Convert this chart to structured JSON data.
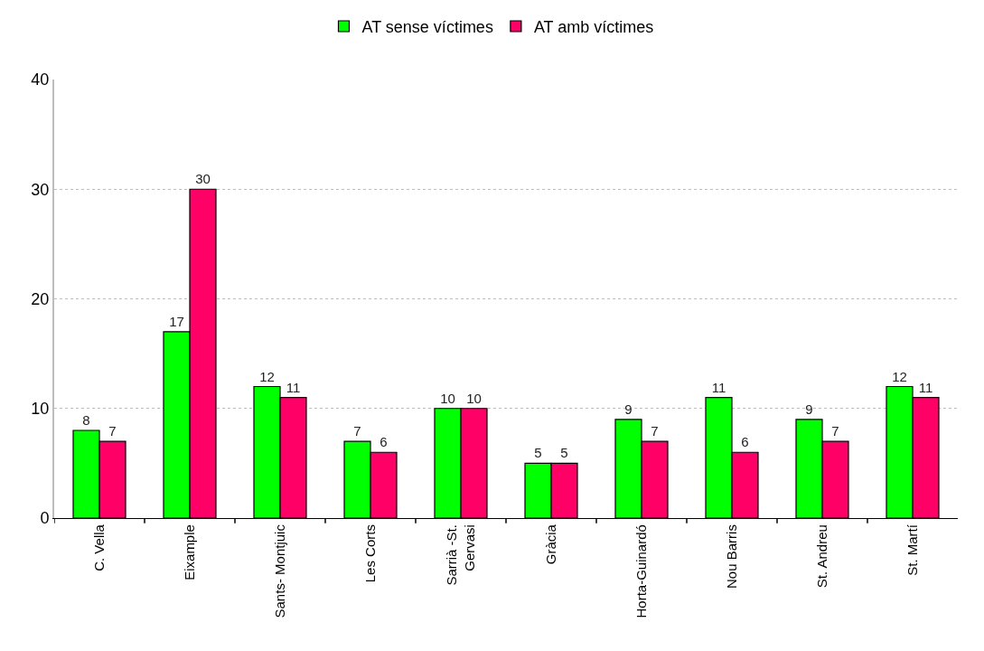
{
  "chart_data": {
    "type": "bar",
    "categories": [
      "C. Vella",
      "Eixample",
      "Sants- Montjuic",
      "Les Corts",
      "Sarrià -St.\nGervasi",
      "Gràcia",
      "Horta-Guinardó",
      "Nou Barris",
      "St. Andreu",
      "St. Martí"
    ],
    "series": [
      {
        "name": "AT sense víctimes",
        "color": "#00ff00",
        "values": [
          8,
          17,
          12,
          7,
          10,
          5,
          9,
          11,
          9,
          12
        ]
      },
      {
        "name": "AT amb víctimes",
        "color": "#ff0066",
        "values": [
          7,
          30,
          11,
          6,
          10,
          5,
          7,
          6,
          7,
          11
        ]
      }
    ],
    "ylim": [
      0,
      40
    ],
    "yticks": [
      0,
      10,
      20,
      30,
      40
    ],
    "grid": "y",
    "legend": "top",
    "data_labels": true
  }
}
